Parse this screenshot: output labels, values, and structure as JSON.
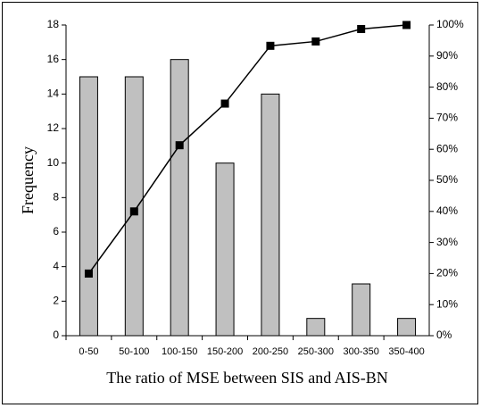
{
  "chart_data": {
    "type": "pareto",
    "x_label": "The ratio of MSE between SIS and AIS-BN",
    "y_label": "Frequency",
    "categories": [
      "0-50",
      "50-100",
      "100-150",
      "150-200",
      "200-250",
      "250-300",
      "300-350",
      "350-400"
    ],
    "series": [
      {
        "type": "bar",
        "color": "#c0c0c0",
        "values": [
          15,
          15,
          16,
          10,
          14,
          1,
          3,
          1
        ]
      },
      {
        "type": "line",
        "axis": "y2",
        "color": "#000000",
        "values": [
          20,
          40,
          61.3,
          74.7,
          93.3,
          94.7,
          98.7,
          100
        ]
      }
    ],
    "ylim": [
      0,
      18
    ],
    "yticks": [
      0,
      2,
      4,
      6,
      8,
      10,
      12,
      14,
      16,
      18
    ],
    "y2lim": [
      0,
      100
    ],
    "y2ticks": [
      {
        "value": 0,
        "label": "0%"
      },
      {
        "value": 10,
        "label": "10%"
      },
      {
        "value": 20,
        "label": "20%"
      },
      {
        "value": 30,
        "label": "30%"
      },
      {
        "value": 40,
        "label": "40%"
      },
      {
        "value": 50,
        "label": "50%"
      },
      {
        "value": 60,
        "label": "60%"
      },
      {
        "value": 70,
        "label": "70%"
      },
      {
        "value": 80,
        "label": "80%"
      },
      {
        "value": 90,
        "label": "90%"
      },
      {
        "value": 100,
        "label": "100%"
      }
    ]
  }
}
